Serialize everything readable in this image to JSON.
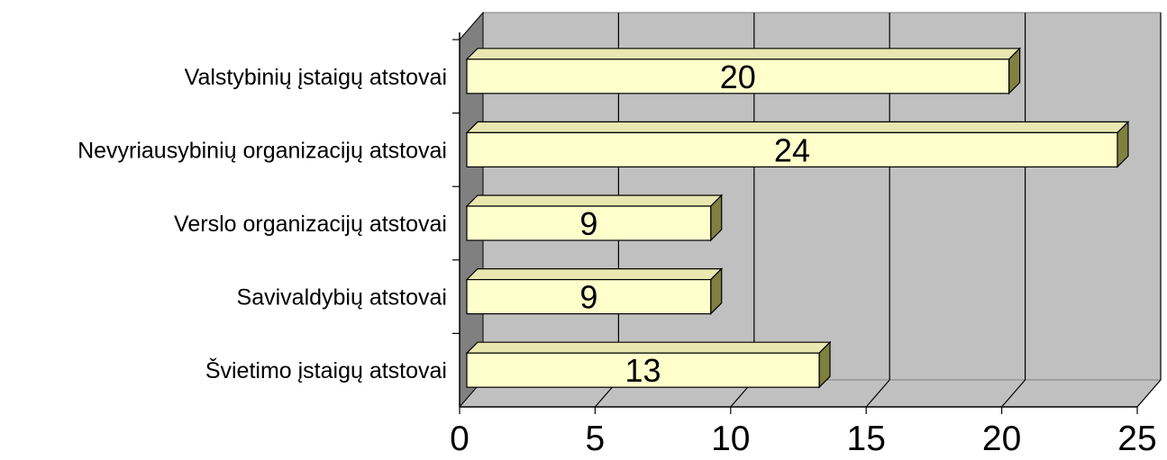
{
  "chart_data": {
    "type": "bar",
    "orientation": "horizontal",
    "style": "3d",
    "categories": [
      "Valstybinių įstaigų atstovai",
      "Nevyriausybinių organizacijų atstovai",
      "Verslo organizacijų atstovai",
      "Savivaldybių atstovai",
      "Švietimo įstaigų atstovai"
    ],
    "values": [
      20,
      24,
      9,
      9,
      13
    ],
    "data_labels": [
      "20",
      "24",
      "9",
      "9",
      "13"
    ],
    "xlim": [
      0,
      25
    ],
    "xticks": [
      "0",
      "5",
      "10",
      "15",
      "20",
      "25"
    ],
    "grid": true,
    "legend": "none",
    "colors": {
      "bar_face": "#ffffcc",
      "bar_top": "#e8e8b0",
      "bar_side": "#808040",
      "back_wall": "#c0c0c0",
      "left_wall": "#808080",
      "floor": "#c0c0c0",
      "gridline": "#000000"
    }
  }
}
